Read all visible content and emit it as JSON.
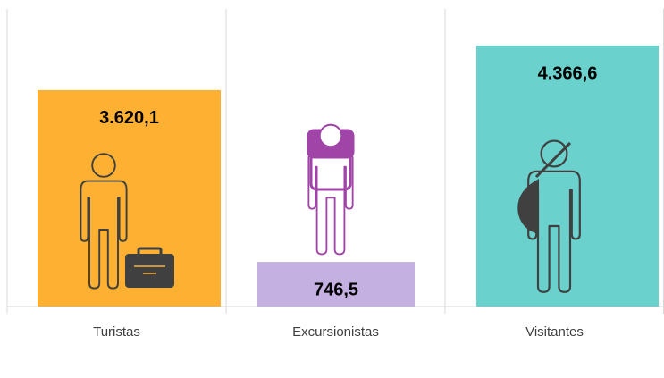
{
  "chart_data": {
    "type": "bar",
    "categories": [
      "Turistas",
      "Excursionistas",
      "Visitantes"
    ],
    "values": [
      3620.1,
      746.5,
      4366.6
    ],
    "value_labels": [
      "3.620,1",
      "746,5",
      "4.366,6"
    ],
    "colors": [
      "#FDB032",
      "#C5B0E2",
      "#6AD1CD"
    ]
  }
}
